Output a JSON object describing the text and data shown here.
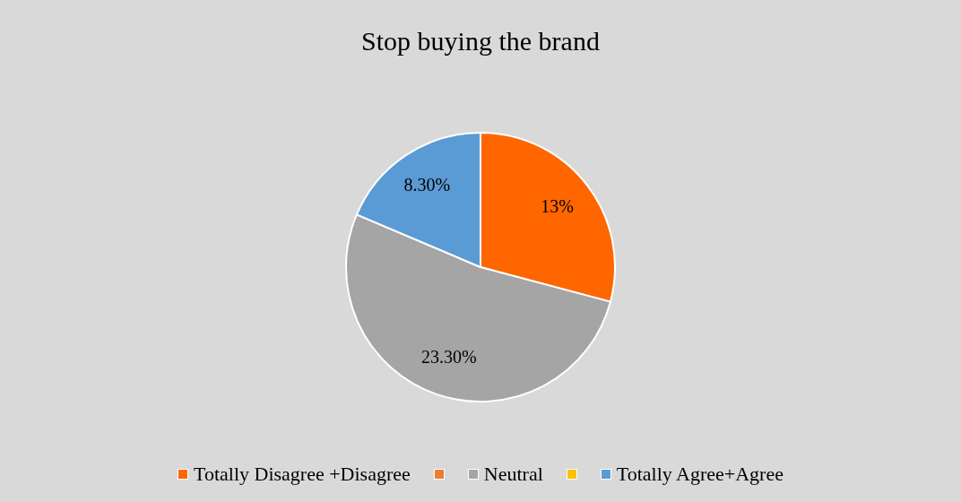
{
  "chart_data": {
    "type": "pie",
    "title": "Stop buying the brand",
    "categories": [
      "Totally Disagree +Disagree",
      null,
      "Neutral",
      null,
      "Totally Agree+Agree"
    ],
    "values": [
      13,
      0,
      23.3,
      0,
      8.3
    ],
    "colors": [
      "#ff6600",
      "#ed7d31",
      "#a5a5a5",
      "#ffc000",
      "#5b9bd5"
    ],
    "value_labels": [
      "13%",
      null,
      "23.30%",
      null,
      "8.30%"
    ],
    "legend": "bottom"
  }
}
